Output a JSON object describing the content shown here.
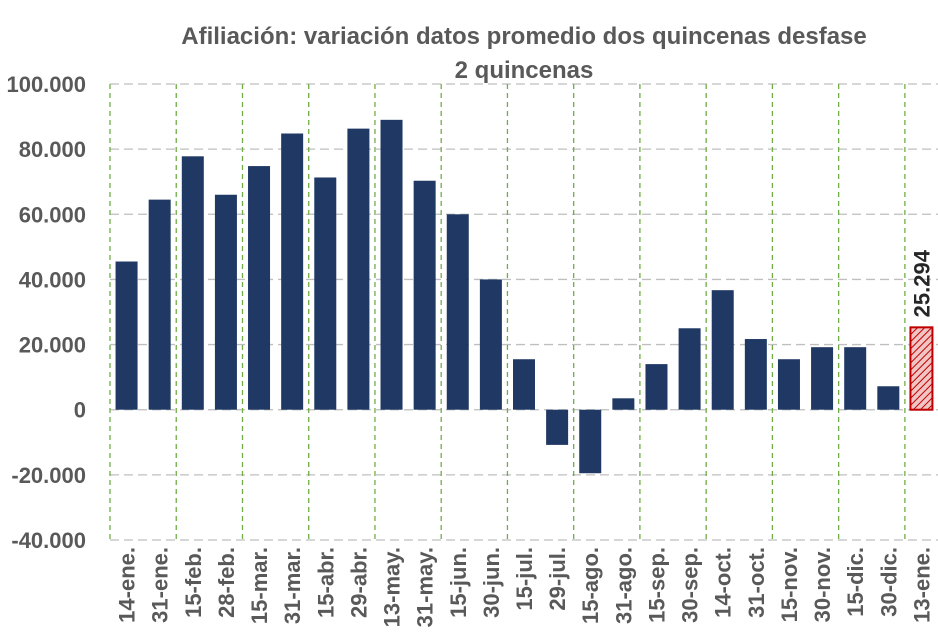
{
  "chart_data": {
    "type": "bar",
    "title_line1": "Afiliación: variación datos promedio dos quincenas desfase",
    "title_line2": "2 quincenas",
    "categories": [
      "14-ene.",
      "31-ene.",
      "15-feb.",
      "28-feb.",
      "15-mar.",
      "31-mar.",
      "15-abr.",
      "29-abr.",
      "13-may.",
      "31-may.",
      "15-jun.",
      "30-jun.",
      "15-jul.",
      "29-jul.",
      "15-ago.",
      "31-ago.",
      "15-sep.",
      "30-sep.",
      "14-oct.",
      "31-oct.",
      "15-nov.",
      "30-nov.",
      "15-dic.",
      "30-dic.",
      "13-ene."
    ],
    "values": [
      45500,
      64500,
      77800,
      66000,
      74800,
      84800,
      71300,
      86300,
      89000,
      70300,
      60000,
      40000,
      15500,
      -10800,
      -19500,
      3500,
      14000,
      25000,
      36700,
      21700,
      15500,
      19200,
      19200,
      7200,
      25294
    ],
    "highlight_index": 24,
    "highlight_label": "25.294",
    "ylim": [
      -40000,
      100000
    ],
    "yticks": [
      -40000,
      -20000,
      0,
      20000,
      40000,
      60000,
      80000,
      100000
    ],
    "ytick_labels": [
      "-40.000",
      "-20.000",
      "0",
      "20.000",
      "40.000",
      "60.000",
      "80.000",
      "100.000"
    ],
    "xlabel": "",
    "ylabel": "",
    "grid": true,
    "colors": {
      "bar": "#1f3864",
      "highlight_fill": "#e8a3a3",
      "highlight_stroke": "#c00000",
      "grid": "#bfbfbf",
      "vertical_guides": "#70ad47",
      "text": "#595959"
    }
  }
}
